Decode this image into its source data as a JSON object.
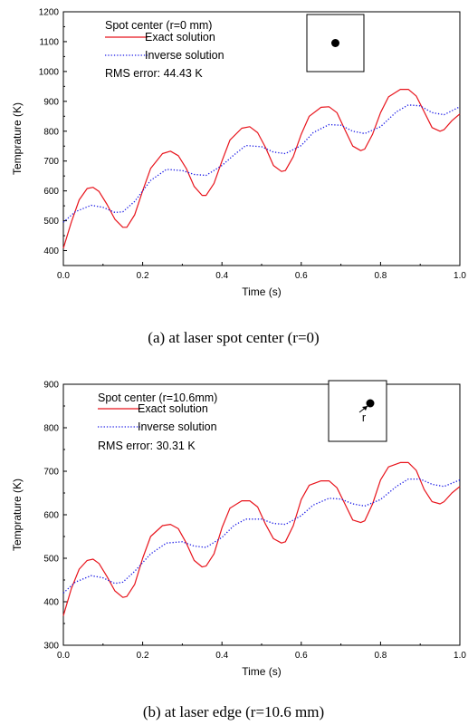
{
  "chart_data": [
    {
      "type": "line",
      "xlabel": "Time (s)",
      "ylabel": "Temprature (K)",
      "xlim": [
        0.0,
        1.0
      ],
      "ylim": [
        350,
        1200
      ],
      "xticks": [
        "0.0",
        "0.2",
        "0.4",
        "0.6",
        "0.8",
        "1.0"
      ],
      "yticks": [
        "400",
        "500",
        "600",
        "700",
        "800",
        "900",
        "1000",
        "1100",
        "1200"
      ],
      "legend_title": "Spot center (r=0 mm)",
      "rms_text": "RMS error: 44.43 K",
      "caption": "(a) at laser spot center (r=0)",
      "inset": "spot-center",
      "inset_label": "",
      "series": [
        {
          "name": "Exact solution",
          "style": "solid",
          "color": "#e8141c",
          "x": [
            0.0,
            0.02,
            0.04,
            0.06,
            0.075,
            0.09,
            0.11,
            0.13,
            0.15,
            0.16,
            0.18,
            0.2,
            0.22,
            0.25,
            0.27,
            0.29,
            0.31,
            0.33,
            0.35,
            0.36,
            0.38,
            0.4,
            0.42,
            0.45,
            0.47,
            0.49,
            0.51,
            0.53,
            0.55,
            0.56,
            0.58,
            0.6,
            0.62,
            0.65,
            0.67,
            0.69,
            0.71,
            0.73,
            0.75,
            0.76,
            0.78,
            0.8,
            0.82,
            0.85,
            0.87,
            0.89,
            0.91,
            0.93,
            0.95,
            0.96,
            0.98,
            1.0
          ],
          "y": [
            408,
            495,
            570,
            608,
            612,
            598,
            555,
            505,
            478,
            478,
            520,
            600,
            675,
            725,
            733,
            718,
            675,
            615,
            585,
            585,
            625,
            700,
            770,
            810,
            815,
            795,
            745,
            685,
            665,
            668,
            715,
            790,
            850,
            880,
            882,
            862,
            805,
            750,
            735,
            740,
            790,
            862,
            915,
            940,
            940,
            918,
            865,
            812,
            800,
            805,
            835,
            858
          ]
        },
        {
          "name": "Inverse solution",
          "style": "dotted",
          "color": "#1a1ae6",
          "x": [
            0.0,
            0.03,
            0.07,
            0.1,
            0.13,
            0.15,
            0.18,
            0.22,
            0.26,
            0.3,
            0.33,
            0.36,
            0.4,
            0.43,
            0.46,
            0.5,
            0.53,
            0.56,
            0.6,
            0.63,
            0.67,
            0.7,
            0.73,
            0.76,
            0.8,
            0.84,
            0.87,
            0.9,
            0.93,
            0.96,
            1.0
          ],
          "y": [
            495,
            530,
            552,
            545,
            528,
            530,
            565,
            635,
            672,
            668,
            655,
            652,
            685,
            720,
            752,
            748,
            730,
            725,
            752,
            795,
            822,
            820,
            800,
            792,
            815,
            865,
            888,
            885,
            862,
            855,
            882
          ]
        }
      ]
    },
    {
      "type": "line",
      "xlabel": "Time (s)",
      "ylabel": "Temprature (K)",
      "xlim": [
        0.0,
        1.0
      ],
      "ylim": [
        300,
        900
      ],
      "xticks": [
        "0.0",
        "0.2",
        "0.4",
        "0.6",
        "0.8",
        "1.0"
      ],
      "yticks": [
        "300",
        "400",
        "500",
        "600",
        "700",
        "800",
        "900"
      ],
      "legend_title": "Spot center (r=10.6mm)",
      "rms_text": "RMS error: 30.31 K",
      "caption": "(b) at laser edge (r=10.6 mm)",
      "inset": "spot-edge",
      "inset_label": "r",
      "series": [
        {
          "name": "Exact solution",
          "style": "solid",
          "color": "#e8141c",
          "x": [
            0.0,
            0.02,
            0.04,
            0.06,
            0.075,
            0.09,
            0.11,
            0.13,
            0.15,
            0.16,
            0.18,
            0.2,
            0.22,
            0.25,
            0.27,
            0.29,
            0.31,
            0.33,
            0.35,
            0.36,
            0.38,
            0.4,
            0.42,
            0.45,
            0.47,
            0.49,
            0.51,
            0.53,
            0.55,
            0.56,
            0.58,
            0.6,
            0.62,
            0.65,
            0.67,
            0.69,
            0.71,
            0.73,
            0.75,
            0.76,
            0.78,
            0.8,
            0.82,
            0.85,
            0.87,
            0.89,
            0.91,
            0.93,
            0.95,
            0.96,
            0.98,
            1.0
          ],
          "y": [
            368,
            430,
            475,
            495,
            498,
            488,
            458,
            425,
            410,
            412,
            440,
            500,
            550,
            575,
            578,
            568,
            535,
            495,
            480,
            482,
            510,
            570,
            615,
            632,
            632,
            618,
            578,
            545,
            535,
            538,
            575,
            635,
            668,
            678,
            678,
            662,
            625,
            588,
            582,
            586,
            625,
            680,
            710,
            720,
            720,
            702,
            658,
            630,
            625,
            630,
            650,
            665
          ]
        },
        {
          "name": "Inverse solution",
          "style": "dotted",
          "color": "#1a1ae6",
          "x": [
            0.0,
            0.03,
            0.07,
            0.1,
            0.13,
            0.15,
            0.18,
            0.22,
            0.26,
            0.3,
            0.33,
            0.36,
            0.4,
            0.43,
            0.46,
            0.5,
            0.53,
            0.56,
            0.6,
            0.63,
            0.67,
            0.7,
            0.73,
            0.76,
            0.8,
            0.84,
            0.87,
            0.9,
            0.93,
            0.96,
            1.0
          ],
          "y": [
            420,
            445,
            460,
            455,
            442,
            445,
            470,
            510,
            535,
            538,
            528,
            525,
            548,
            575,
            590,
            590,
            580,
            578,
            598,
            622,
            638,
            636,
            625,
            620,
            635,
            665,
            682,
            682,
            670,
            665,
            680
          ]
        }
      ]
    }
  ]
}
